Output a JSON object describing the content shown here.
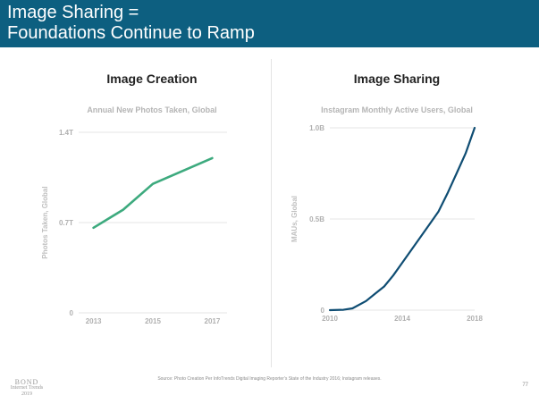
{
  "header": {
    "title_line1": "Image Sharing =",
    "title_line2": "Foundations Continue to Ramp"
  },
  "colors": {
    "banner": "#0d5f80",
    "green_line": "#3daa7e",
    "blue_line": "#0f4d73"
  },
  "chart_data": [
    {
      "type": "line",
      "panel_title": "Image Creation",
      "title": "Annual New Photos Taken, Global",
      "xlabel": "",
      "ylabel": "Photos Taken, Global",
      "x": [
        2013,
        2014,
        2015,
        2016,
        2017
      ],
      "series": [
        {
          "values": [
            0.66,
            0.8,
            1.0,
            1.1,
            1.2
          ]
        }
      ],
      "xlim": [
        2012.5,
        2017.5
      ],
      "ylim": [
        0,
        1.4
      ],
      "x_tick_labels": [
        {
          "value": 2013,
          "label": "2013"
        },
        {
          "value": 2015,
          "label": "2015"
        },
        {
          "value": 2017,
          "label": "2017"
        }
      ],
      "y_tick_labels": [
        {
          "value": 0,
          "label": "0"
        },
        {
          "value": 0.7,
          "label": "0.7T"
        },
        {
          "value": 1.4,
          "label": "1.4T"
        }
      ],
      "grid": true
    },
    {
      "type": "line",
      "panel_title": "Image Sharing",
      "title": "Instagram Monthly Active Users, Global",
      "xlabel": "",
      "ylabel": "MAUs, Global",
      "x": [
        2010,
        2010.75,
        2011.25,
        2012,
        2012.5,
        2013,
        2013.5,
        2014,
        2014.5,
        2015,
        2015.5,
        2016,
        2016.5,
        2017,
        2017.5,
        2018
      ],
      "series": [
        {
          "values": [
            0,
            0.002,
            0.01,
            0.05,
            0.09,
            0.13,
            0.19,
            0.26,
            0.33,
            0.4,
            0.47,
            0.54,
            0.64,
            0.75,
            0.86,
            1.0
          ]
        }
      ],
      "xlim": [
        2010,
        2018
      ],
      "ylim": [
        0,
        1.0
      ],
      "x_tick_labels": [
        {
          "value": 2010,
          "label": "2010"
        },
        {
          "value": 2014,
          "label": "2014"
        },
        {
          "value": 2018,
          "label": "2018"
        }
      ],
      "y_tick_labels": [
        {
          "value": 0,
          "label": "0"
        },
        {
          "value": 0.5,
          "label": "0.5B"
        },
        {
          "value": 1.0,
          "label": "1.0B"
        }
      ],
      "grid": true
    }
  ],
  "footer": {
    "source": "Source: Photo Creation Per InfoTrends Digital Imaging Reporter's State of the Industry 2016; Instagram releases.",
    "logo_line1": "BOND",
    "logo_line2": "Internet Trends",
    "logo_line3": "2019",
    "page_number": "77"
  }
}
